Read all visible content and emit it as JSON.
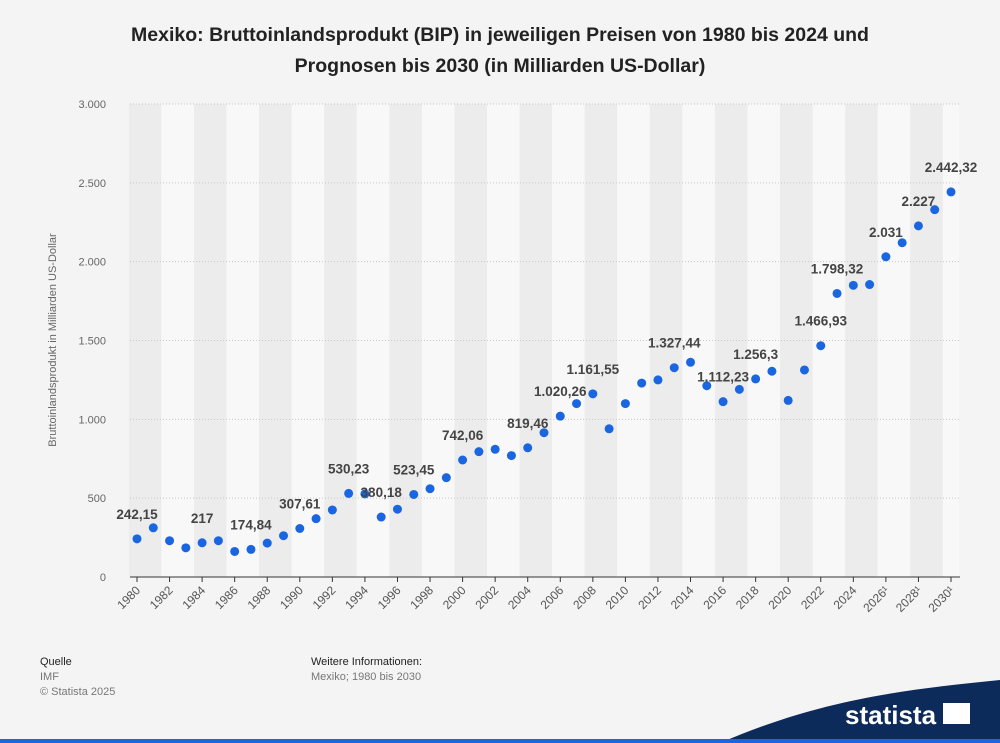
{
  "chart_data": {
    "type": "line",
    "title": "Mexiko: Bruttoinlandsprodukt (BIP) in jeweiligen Preisen von 1980 bis 2024 und Prognosen bis 2030 (in Milliarden US-Dollar)",
    "y_label": "Bruttoinlandsprodukt in Milliarden US-Dollar",
    "categories": [
      "1980",
      null,
      "1982",
      null,
      "1984",
      null,
      "1986",
      null,
      "1988",
      null,
      "1990",
      null,
      "1992",
      null,
      "1994",
      null,
      "1996",
      null,
      "1998",
      null,
      "2000",
      null,
      "2002",
      null,
      "2004",
      null,
      "2006",
      null,
      "2008",
      null,
      "2010",
      null,
      "2012",
      null,
      "2014",
      null,
      "2016",
      null,
      "2018",
      null,
      "2020",
      null,
      "2022",
      null,
      "2024",
      null,
      "2026¹",
      null,
      "2028¹",
      null,
      "2030¹"
    ],
    "series": [
      {
        "name": "BIP",
        "color": "#1a66e0",
        "values": [
          242.15,
          312,
          230,
          185,
          217,
          230,
          162,
          174.84,
          215,
          262,
          307.61,
          370,
          425,
          530.23,
          527,
          380.18,
          430,
          523.45,
          560,
          630,
          742.06,
          795,
          810,
          770,
          819.46,
          915,
          1020.26,
          1100,
          1161.55,
          940,
          1100,
          1230,
          1250,
          1327.44,
          1362,
          1213,
          1112.23,
          1190,
          1256.3,
          1305,
          1120,
          1313,
          1466.93,
          1798.32,
          1850,
          1855,
          2031,
          2120,
          2227,
          2330,
          2442.32
        ],
        "value_labels": [
          "242,15",
          null,
          null,
          null,
          "217",
          null,
          null,
          "174,84",
          null,
          null,
          "307,61",
          null,
          null,
          "530,23",
          null,
          "380,18",
          null,
          "523,45",
          null,
          null,
          "742,06",
          null,
          null,
          null,
          "819,46",
          null,
          "1.020,26",
          null,
          "1.161,55",
          null,
          null,
          null,
          null,
          "1.327,44",
          null,
          null,
          "1.112,23",
          null,
          "1.256,3",
          null,
          null,
          null,
          "1.466,93",
          "1.798,32",
          null,
          null,
          "2.031",
          null,
          "2.227",
          null,
          "2.442,32"
        ]
      }
    ],
    "ylim": [
      0,
      3000
    ],
    "yticks": [
      0,
      500,
      {
        "value": 1000,
        "label": "1.000"
      },
      {
        "value": 1500,
        "label": "1.500"
      },
      {
        "value": 2000,
        "label": "2.000"
      },
      {
        "value": 2500,
        "label": "2.500"
      },
      {
        "value": 3000,
        "label": "3.000"
      }
    ],
    "grid": true
  },
  "footer": {
    "source_heading": "Quelle",
    "source": "IMF",
    "copyright": "© Statista 2025",
    "info_heading": "Weitere Informationen:",
    "info": "Mexiko; 1980 bis 2030",
    "logo": "statista"
  }
}
